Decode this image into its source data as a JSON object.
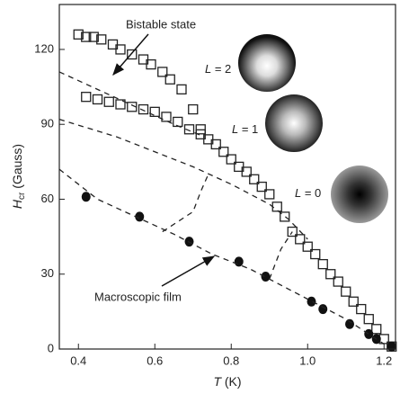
{
  "chart_data": {
    "type": "scatter",
    "xlabel": {
      "symbol": "T",
      "unit": "(K)"
    },
    "ylabel": {
      "symbol": "H",
      "subscript": "cr",
      "unit": "(Gauss)"
    },
    "xlim": [
      0.35,
      1.23
    ],
    "ylim": [
      0,
      138
    ],
    "xticks": [
      0.4,
      0.6,
      0.8,
      {
        "value": 1,
        "label": "1.0"
      },
      1.2
    ],
    "yticks": [
      0,
      30,
      60,
      90,
      120
    ],
    "series": [
      {
        "marker": "square",
        "color": "#222222",
        "x": [
          0.4,
          0.42,
          0.44,
          0.46,
          0.49,
          0.51,
          0.54,
          0.57,
          0.59,
          0.62,
          0.64,
          0.67,
          0.7,
          0.72
        ],
        "values": [
          126,
          125,
          125,
          124,
          122,
          120,
          118,
          116,
          114,
          111,
          108,
          104,
          96,
          88
        ]
      },
      {
        "marker": "square",
        "color": "#222222",
        "x": [
          0.42,
          0.45,
          0.48,
          0.51,
          0.54,
          0.57,
          0.6,
          0.63,
          0.66,
          0.69,
          0.72,
          0.74,
          0.76,
          0.78,
          0.8,
          0.82,
          0.84,
          0.86,
          0.88,
          0.9,
          0.92,
          0.94,
          0.96,
          0.98,
          1.0,
          1.02,
          1.04,
          1.06,
          1.08,
          1.1,
          1.12,
          1.14,
          1.16,
          1.18,
          1.2,
          1.22
        ],
        "values": [
          101,
          100,
          99,
          98,
          97,
          96,
          95,
          93,
          91,
          88,
          86,
          84,
          82,
          79,
          76,
          73,
          71,
          68,
          65,
          62,
          57,
          53,
          47,
          44,
          41,
          38,
          34,
          30,
          27,
          23,
          19,
          16,
          12,
          8,
          4,
          1
        ]
      },
      {
        "marker": "circle",
        "color": "#111111",
        "x": [
          0.42,
          0.56,
          0.69,
          0.82,
          0.89,
          1.01,
          1.04,
          1.11,
          1.16,
          1.18,
          1.22
        ],
        "values": [
          61,
          53,
          43,
          35,
          29,
          19,
          16,
          10,
          6,
          4,
          1
        ]
      },
      {
        "marker": "dashed",
        "color": "#222222",
        "x": [
          0.35,
          0.45,
          0.55,
          0.65,
          0.73
        ],
        "values": [
          111,
          104,
          97,
          90,
          85
        ]
      },
      {
        "marker": "dashed",
        "color": "#222222",
        "x": [
          0.35,
          0.5,
          0.6,
          0.7,
          0.8,
          0.9,
          0.95,
          1.0
        ],
        "values": [
          92,
          85,
          79,
          73,
          66,
          58,
          52,
          44
        ]
      },
      {
        "marker": "dashed",
        "color": "#222222",
        "x": [
          0.35,
          0.45,
          0.55,
          0.65,
          0.75,
          0.85,
          0.9,
          0.95,
          1.0,
          1.1,
          1.2
        ],
        "values": [
          72,
          60,
          53,
          46,
          38,
          32,
          28,
          24,
          20,
          12,
          2
        ]
      },
      {
        "marker": "dashed",
        "color": "#222222",
        "x": [
          0.62,
          0.7,
          0.72,
          0.74
        ],
        "values": [
          47,
          55,
          63,
          70
        ]
      },
      {
        "marker": "dashed",
        "color": "#222222",
        "x": [
          0.9,
          0.93,
          0.96
        ],
        "values": [
          28,
          40,
          47
        ]
      }
    ],
    "annotations": [
      "Bistable state",
      "Macroscopic film"
    ],
    "states": [
      {
        "symbol": "L",
        "text": " = 2"
      },
      {
        "symbol": "L",
        "text": " = 1"
      },
      {
        "symbol": "L",
        "text": " = 0"
      }
    ]
  }
}
